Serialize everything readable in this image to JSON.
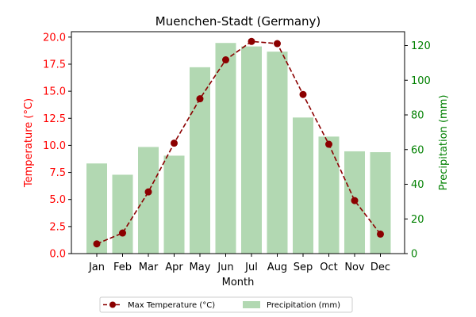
{
  "chart_data": {
    "type": "bar",
    "title": "Muenchen-Stadt (Germany)",
    "xlabel": "Month",
    "categories": [
      "Jan",
      "Feb",
      "Mar",
      "Apr",
      "May",
      "Jun",
      "Jul",
      "Aug",
      "Sep",
      "Oct",
      "Nov",
      "Dec"
    ],
    "y_left": {
      "label": "Temperature (°C)",
      "lim": [
        0,
        20.5
      ],
      "ticks": [
        "0.0",
        "2.5",
        "5.0",
        "7.5",
        "10.0",
        "12.5",
        "15.0",
        "17.5",
        "20.0"
      ],
      "color": "#ff0000"
    },
    "y_right": {
      "label": "Precipitation (mm)",
      "lim": [
        0,
        128
      ],
      "ticks": [
        "0",
        "20",
        "40",
        "60",
        "80",
        "100",
        "120"
      ],
      "color": "#008000"
    },
    "series": [
      {
        "name": "Max Temperature (°C)",
        "type": "line",
        "axis": "left",
        "color": "#8b0000",
        "values": [
          0.9,
          1.9,
          5.7,
          10.2,
          14.3,
          17.9,
          19.6,
          19.4,
          14.7,
          10.1,
          4.9,
          1.8
        ]
      },
      {
        "name": "Precipitation (mm)",
        "type": "bar",
        "axis": "right",
        "color": "#b2d8b2",
        "values": [
          52,
          45.5,
          61.5,
          56.5,
          107.5,
          121.5,
          119.5,
          116.5,
          78.5,
          67.5,
          59,
          58.5
        ]
      }
    ],
    "legend_position": "bottom-center",
    "grid": false
  }
}
